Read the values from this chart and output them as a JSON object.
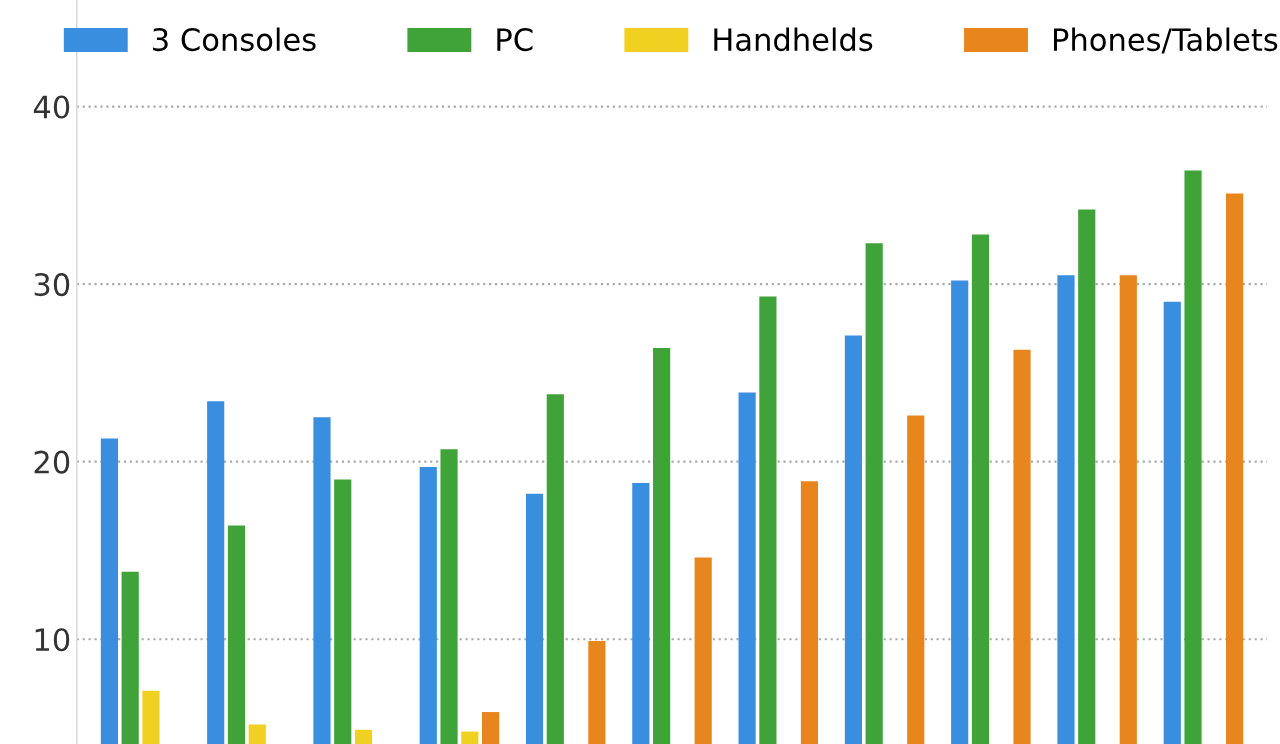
{
  "chart_data": {
    "type": "bar",
    "categories": [
      null,
      null,
      null,
      null,
      null,
      null,
      null,
      null,
      null,
      null,
      null
    ],
    "series": [
      {
        "name": "3 Consoles",
        "color": "#3a8ee0",
        "values": [
          21.3,
          23.4,
          22.5,
          19.7,
          18.2,
          18.8,
          23.9,
          27.1,
          30.2,
          30.5,
          29.0
        ]
      },
      {
        "name": "PC",
        "color": "#3fa33a",
        "values": [
          13.8,
          16.4,
          19.0,
          20.7,
          23.8,
          26.4,
          29.3,
          32.3,
          32.8,
          34.2,
          36.4
        ]
      },
      {
        "name": "Handhelds",
        "color": "#f0d020",
        "values": [
          7.1,
          5.2,
          4.9,
          4.8,
          null,
          null,
          null,
          null,
          null,
          null,
          null
        ]
      },
      {
        "name": "Phones/Tablets",
        "color": "#e8861e",
        "values": [
          null,
          null,
          null,
          5.9,
          9.9,
          14.6,
          18.9,
          22.6,
          26.3,
          30.5,
          35.1
        ]
      }
    ],
    "ylim": [
      4.1,
      46
    ],
    "yticks": [
      10,
      20,
      30,
      40
    ],
    "grid": "y",
    "legend": "top"
  }
}
